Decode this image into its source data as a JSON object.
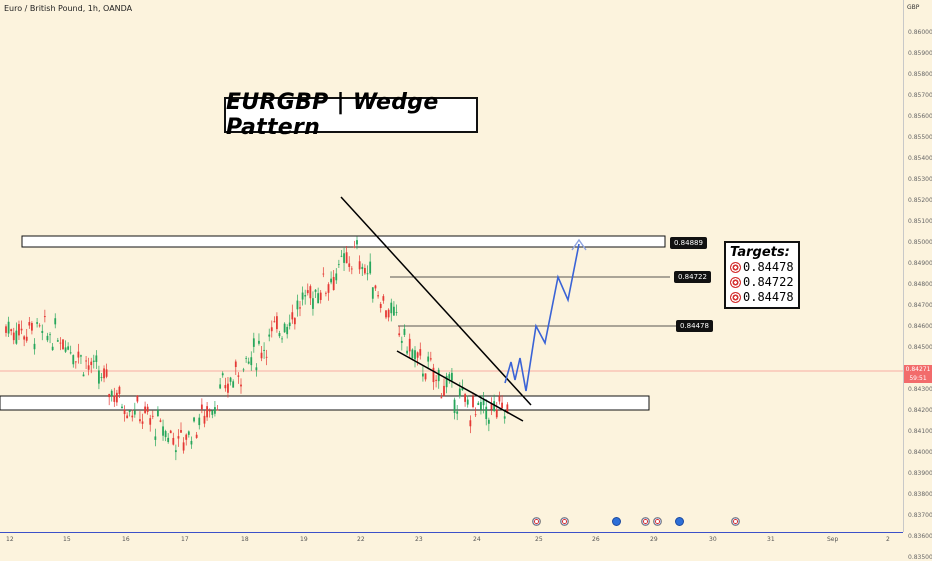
{
  "header": {
    "symbol_title": "Euro / British Pound, 1h, OANDA"
  },
  "headline": "EURGBP | Wedge Pattern",
  "targets": {
    "title": "Targets:",
    "items": [
      "0.84478",
      "0.84722",
      "0.84478"
    ],
    "icon": "target-icon"
  },
  "levels": {
    "label_1": "0.84889",
    "label_2": "0.84722",
    "label_3": "0.84478"
  },
  "current_price": {
    "value": "0.84271",
    "countdown": "59:51",
    "color": "#f26b6b"
  },
  "price_axis": {
    "currency": "GBP",
    "ticks": [
      "0.86000",
      "0.85900",
      "0.85800",
      "0.85700",
      "0.85600",
      "0.85500",
      "0.85400",
      "0.85300",
      "0.85200",
      "0.85100",
      "0.85000",
      "0.84900",
      "0.84800",
      "0.84700",
      "0.84600",
      "0.84500",
      "0.84300",
      "0.84200",
      "0.84100",
      "0.84000",
      "0.83900",
      "0.83800",
      "0.83700",
      "0.83600",
      "0.83500"
    ]
  },
  "time_axis": {
    "ticks": [
      "12",
      "15",
      "16",
      "17",
      "18",
      "19",
      "22",
      "23",
      "24",
      "25",
      "26",
      "29",
      "30",
      "31",
      "Sep",
      "2"
    ]
  },
  "colors": {
    "background": "#fcf3dd",
    "candle_up": "#26a65b",
    "candle_down": "#e53935",
    "projection": "#3a63d6",
    "wedge": "#000000"
  },
  "chart_data": {
    "type": "line",
    "title": "EURGBP | Wedge Pattern",
    "series": [
      {
        "name": "",
        "x": [
          "12",
          "15",
          "16",
          "17",
          "18",
          "19",
          "22",
          "23",
          "24"
        ],
        "values": [
          0.846,
          0.8455,
          0.8425,
          0.8405,
          0.844,
          0.847,
          0.8495,
          0.8445,
          0.842
        ]
      }
    ],
    "ylim": [
      0.835,
      0.8605
    ],
    "levels": [
      0.84889,
      0.84722,
      0.84478
    ],
    "support_zone": [
      0.841,
      0.8418
    ],
    "resistance_zone": [
      0.8488,
      0.8493
    ],
    "projection": [
      0.842,
      0.8435,
      0.845,
      0.8445,
      0.8475,
      0.8468,
      0.8489
    ],
    "grid": false
  }
}
